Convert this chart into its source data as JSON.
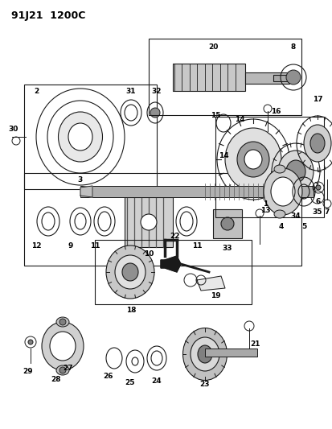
{
  "title": "91J21  1200C",
  "bg_color": "#ffffff",
  "lc": "#1a1a1a",
  "figsize": [
    4.14,
    5.33
  ],
  "dpi": 100,
  "title_fs": 9,
  "label_fs": 6.5
}
